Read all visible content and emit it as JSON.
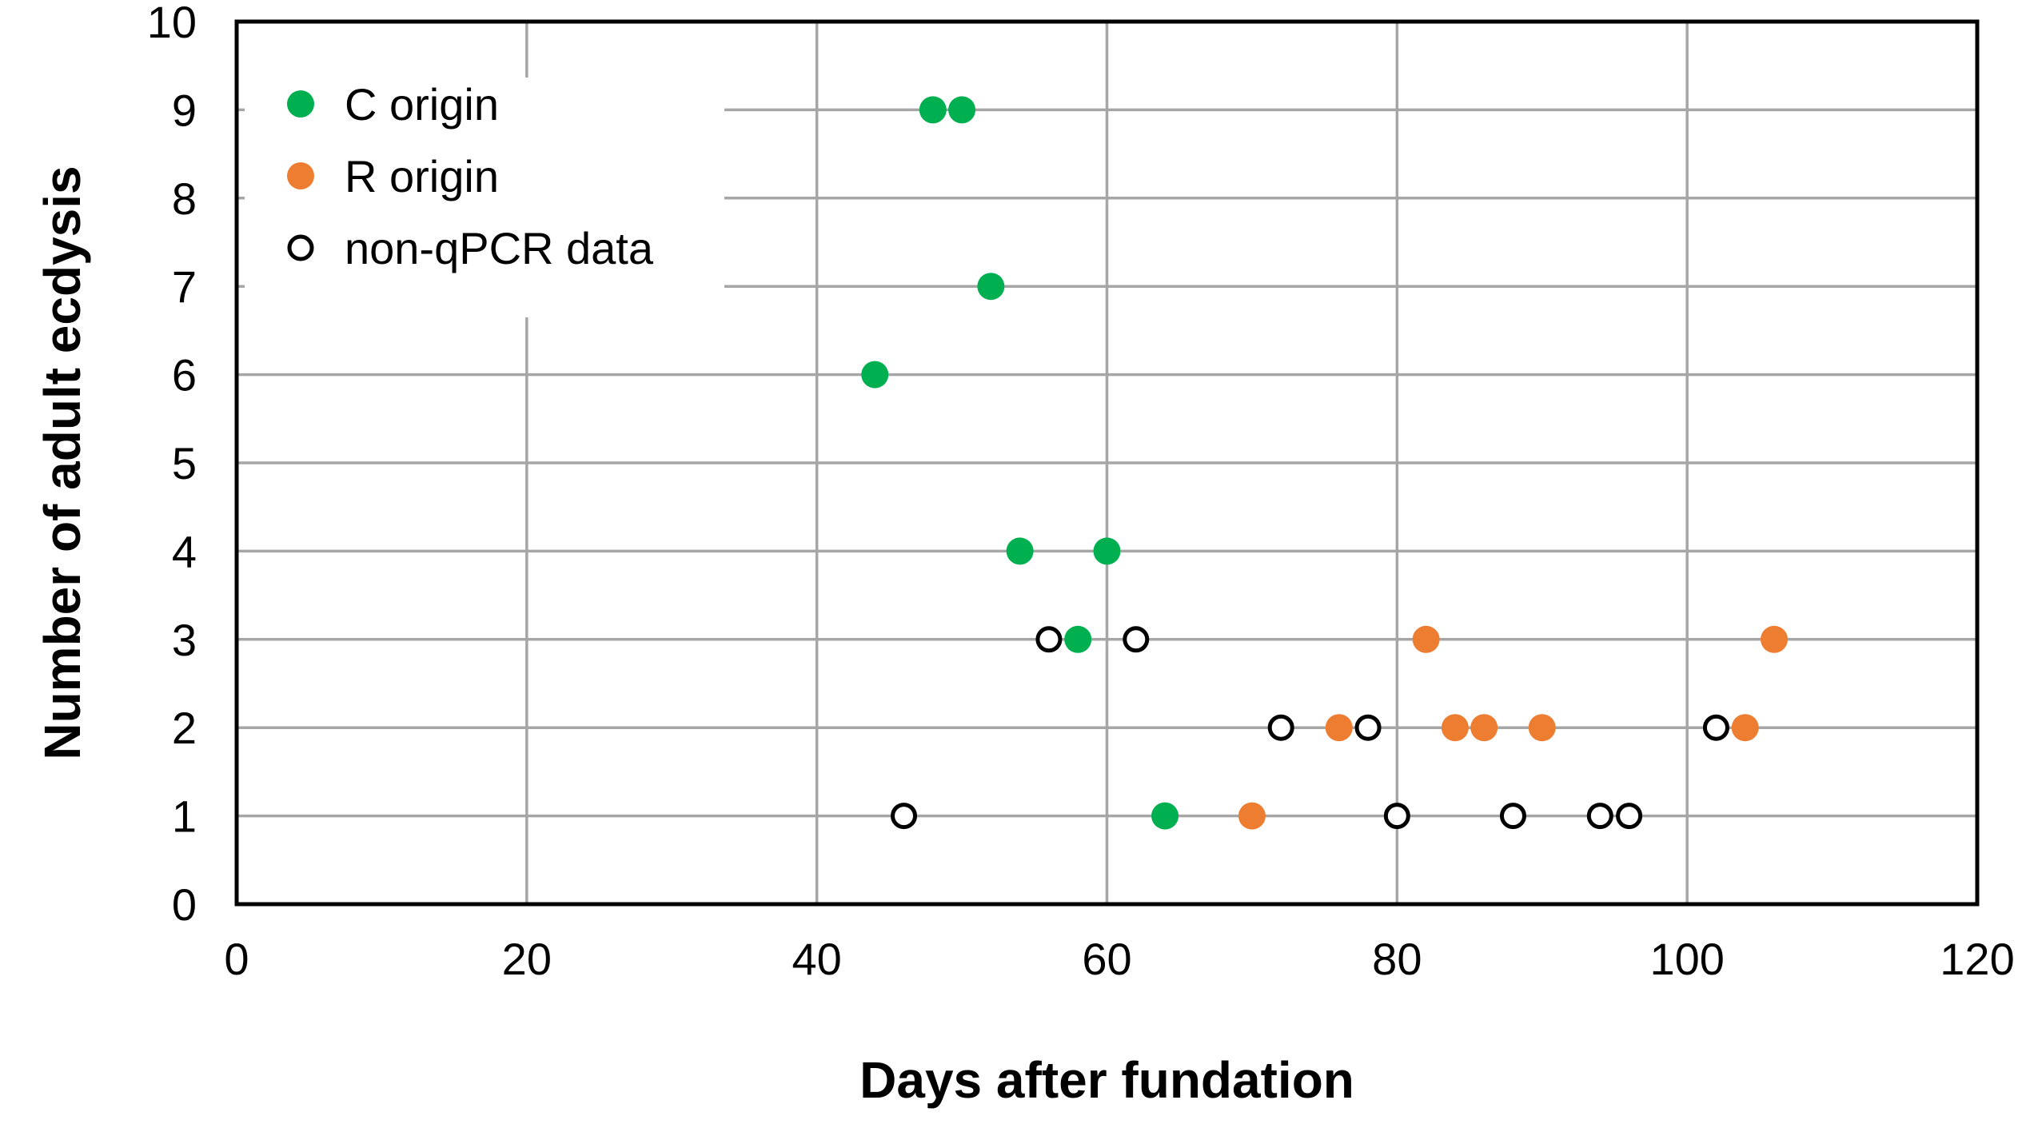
{
  "chart_data": {
    "type": "scatter",
    "title": "",
    "xlabel": "Days after fundation",
    "ylabel": "Number of adult ecdysis",
    "xlim": [
      0,
      120
    ],
    "ylim": [
      0,
      10
    ],
    "xticks": [
      0,
      20,
      40,
      60,
      80,
      100,
      120
    ],
    "yticks": [
      0,
      1,
      2,
      3,
      4,
      5,
      6,
      7,
      8,
      9,
      10
    ],
    "grid": true,
    "legend_position": "top-left",
    "series": [
      {
        "name": "C origin",
        "color": "#00b050",
        "filled": true,
        "points": [
          [
            48,
            9
          ],
          [
            50,
            9
          ],
          [
            52,
            7
          ],
          [
            44,
            6
          ],
          [
            54,
            4
          ],
          [
            60,
            4
          ],
          [
            58,
            3
          ],
          [
            64,
            1
          ]
        ]
      },
      {
        "name": "R origin",
        "color": "#ed7d31",
        "filled": true,
        "points": [
          [
            82,
            3
          ],
          [
            106,
            3
          ],
          [
            76,
            2
          ],
          [
            84,
            2
          ],
          [
            86,
            2
          ],
          [
            90,
            2
          ],
          [
            104,
            2
          ],
          [
            70,
            1
          ]
        ]
      },
      {
        "name": "non-qPCR data",
        "color": "#000000",
        "filled": false,
        "points": [
          [
            56,
            3
          ],
          [
            62,
            3
          ],
          [
            72,
            2
          ],
          [
            78,
            2
          ],
          [
            102,
            2
          ],
          [
            46,
            1
          ],
          [
            80,
            1
          ],
          [
            88,
            1
          ],
          [
            94,
            1
          ],
          [
            96,
            1
          ]
        ]
      }
    ]
  }
}
